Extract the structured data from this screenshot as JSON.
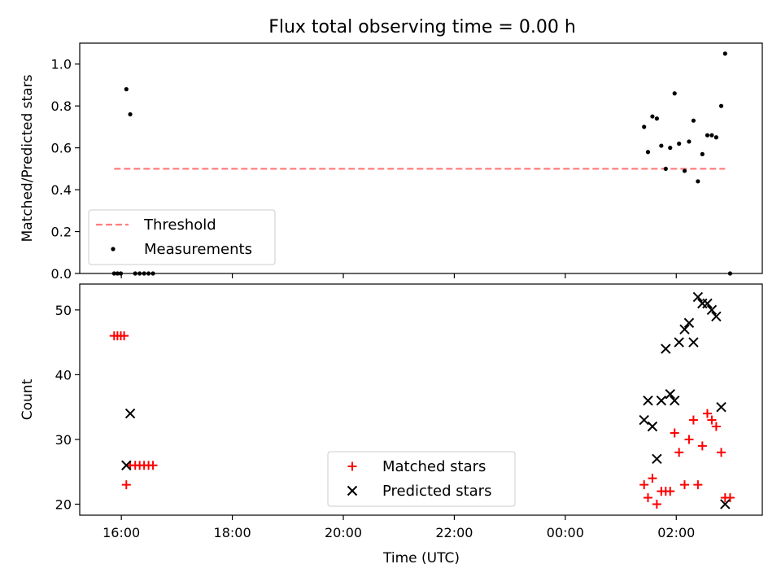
{
  "figure": {
    "title": "Flux total observing time = 0.00 h",
    "xlabel": "Time (UTC)"
  },
  "colors": {
    "threshold": "#ff7f7f",
    "measurements": "#000000",
    "matched": "#ff0000",
    "predicted": "#000000"
  },
  "chart_data": [
    {
      "type": "scatter",
      "panel": "top",
      "title": "Flux total observing time = 0.00 h",
      "ylabel": "Matched/Predicted stars",
      "xlabel": "",
      "x_unit": "hours",
      "xlim": [
        15.25,
        27.55
      ],
      "ylim": [
        0,
        1.1
      ],
      "xticks": [
        16,
        18,
        20,
        22,
        24,
        26
      ],
      "xtick_labels": [
        "16:00",
        "18:00",
        "20:00",
        "22:00",
        "00:00",
        "02:00"
      ],
      "xtick_labels_shown": false,
      "yticks": [
        0.0,
        0.2,
        0.4,
        0.6,
        0.8,
        1.0
      ],
      "ytick_labels": [
        "0.0",
        "0.2",
        "0.4",
        "0.6",
        "0.8",
        "1.0"
      ],
      "legend": {
        "position": "lower-left",
        "entries": [
          "Threshold",
          "Measurements"
        ]
      },
      "series": [
        {
          "name": "Threshold",
          "kind": "dashed-line",
          "x": [
            15.87,
            26.88
          ],
          "y": [
            0.5,
            0.5
          ]
        },
        {
          "name": "Measurements",
          "kind": "dots",
          "x": [
            15.87,
            15.93,
            15.99,
            16.09,
            16.16,
            16.25,
            16.33,
            16.41,
            16.49,
            16.57,
            25.42,
            25.49,
            25.57,
            25.65,
            25.73,
            25.81,
            25.89,
            25.97,
            26.05,
            26.15,
            26.23,
            26.31,
            26.39,
            26.47,
            26.56,
            26.64,
            26.72,
            26.81,
            26.88,
            26.97
          ],
          "y": [
            0.0,
            0.0,
            0.0,
            0.88,
            0.76,
            0.0,
            0.0,
            0.0,
            0.0,
            0.0,
            0.7,
            0.58,
            0.75,
            0.74,
            0.61,
            0.5,
            0.6,
            0.86,
            0.62,
            0.49,
            0.63,
            0.73,
            0.44,
            0.57,
            0.66,
            0.66,
            0.65,
            0.8,
            1.05,
            0.0
          ]
        }
      ]
    },
    {
      "type": "scatter",
      "panel": "bottom",
      "ylabel": "Count",
      "xlabel": "Time (UTC)",
      "x_unit": "hours",
      "xlim": [
        15.25,
        27.55
      ],
      "ylim": [
        18.3,
        54.0
      ],
      "xticks": [
        16,
        18,
        20,
        22,
        24,
        26
      ],
      "xtick_labels": [
        "16:00",
        "18:00",
        "20:00",
        "22:00",
        "00:00",
        "02:00"
      ],
      "yticks": [
        20,
        30,
        40,
        50
      ],
      "ytick_labels": [
        "20",
        "30",
        "40",
        "50"
      ],
      "legend": {
        "position": "lower-center",
        "entries": [
          "Matched stars",
          "Predicted stars"
        ]
      },
      "series": [
        {
          "name": "Matched stars",
          "kind": "plus",
          "x": [
            15.87,
            15.93,
            15.99,
            16.05,
            16.09,
            16.16,
            16.25,
            16.33,
            16.41,
            16.49,
            16.57,
            25.42,
            25.49,
            25.57,
            25.65,
            25.73,
            25.81,
            25.89,
            25.97,
            26.05,
            26.15,
            26.23,
            26.31,
            26.39,
            26.47,
            26.56,
            26.64,
            26.72,
            26.81,
            26.88,
            26.97
          ],
          "y": [
            46,
            46,
            46,
            46,
            23,
            26,
            26,
            26,
            26,
            26,
            26,
            23,
            21,
            24,
            20,
            22,
            22,
            22,
            31,
            28,
            23,
            30,
            33,
            23,
            29,
            34,
            33,
            32,
            28,
            21,
            21
          ]
        },
        {
          "name": "Predicted stars",
          "kind": "x",
          "x": [
            16.09,
            16.16,
            25.42,
            25.49,
            25.57,
            25.65,
            25.73,
            25.81,
            25.89,
            25.97,
            26.05,
            26.15,
            26.23,
            26.31,
            26.39,
            26.47,
            26.56,
            26.64,
            26.72,
            26.81,
            26.88
          ],
          "y": [
            26,
            34,
            33,
            36,
            32,
            27,
            36,
            44,
            37,
            36,
            45,
            47,
            48,
            45,
            52,
            51,
            51,
            50,
            49,
            35,
            20
          ]
        }
      ]
    }
  ]
}
